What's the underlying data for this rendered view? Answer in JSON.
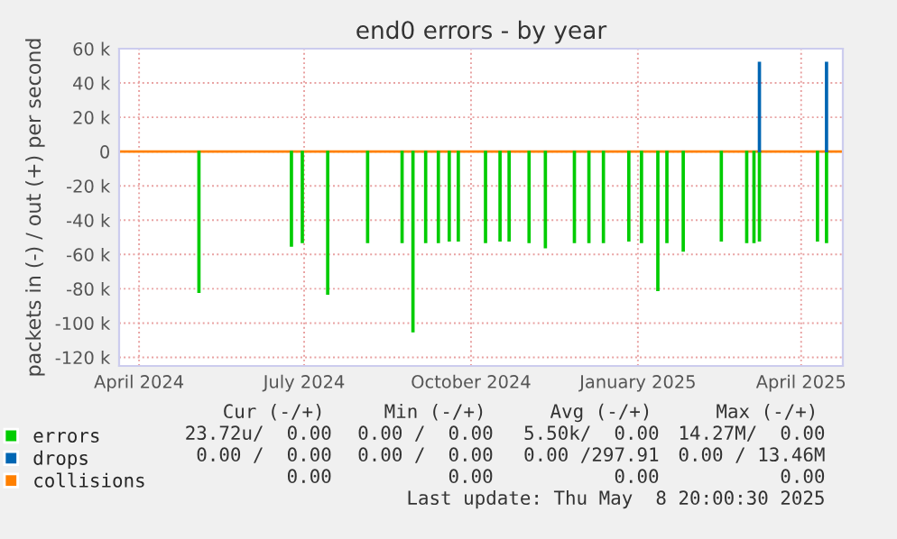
{
  "chart_data": {
    "type": "bar",
    "title": "end0 errors - by year",
    "ylabel": "packets in (-) / out (+) per second",
    "xlim": [
      "2024-03-21",
      "2025-04-24"
    ],
    "xticks": [
      {
        "value": "2024-04-01",
        "label": "April 2024"
      },
      {
        "value": "2024-07-01",
        "label": "July 2024"
      },
      {
        "value": "2024-10-01",
        "label": "October 2024"
      },
      {
        "value": "2025-01-01",
        "label": "January 2025"
      },
      {
        "value": "2025-04-01",
        "label": "April 2025"
      }
    ],
    "ylim": [
      -125000,
      60000
    ],
    "yticks": [
      {
        "value": -120000,
        "label": "-120 k"
      },
      {
        "value": -100000,
        "label": "-100 k"
      },
      {
        "value": -80000,
        "label": "-80 k"
      },
      {
        "value": -60000,
        "label": "-60 k"
      },
      {
        "value": -40000,
        "label": "-40 k"
      },
      {
        "value": -20000,
        "label": "-20 k"
      },
      0,
      {
        "value": 20000,
        "label": "20 k"
      },
      {
        "value": 40000,
        "label": "40 k"
      },
      {
        "value": 60000,
        "label": "60 k"
      }
    ],
    "grid": true,
    "legend": "bottom",
    "series": [
      {
        "name": "errors",
        "color": "#00cc00",
        "x": [
          "2024-05-04",
          "2024-06-24",
          "2024-06-30",
          "2024-07-14",
          "2024-08-05",
          "2024-08-24",
          "2024-08-30",
          "2024-09-06",
          "2024-09-13",
          "2024-09-19",
          "2024-09-24",
          "2024-10-09",
          "2024-10-17",
          "2024-10-22",
          "2024-11-02",
          "2024-11-11",
          "2024-11-27",
          "2024-12-05",
          "2024-12-13",
          "2024-12-27",
          "2025-01-03",
          "2025-01-12",
          "2025-01-17",
          "2025-01-26",
          "2025-02-16",
          "2025-03-02",
          "2025-03-06",
          "2025-03-09",
          "2025-04-10",
          "2025-04-15"
        ],
        "values": [
          -82000,
          -55000,
          -53000,
          -83000,
          -53000,
          -53000,
          -105000,
          -53000,
          -53000,
          -52000,
          -52000,
          -53000,
          -52000,
          -52000,
          -53000,
          -56000,
          -53000,
          -53000,
          -53000,
          -52000,
          -53000,
          -81000,
          -53000,
          -58000,
          -52000,
          -53000,
          -53000,
          -52000,
          -52000,
          -53000
        ]
      },
      {
        "name": "drops",
        "color": "#0066b3",
        "x": [
          "2025-03-09",
          "2025-04-15"
        ],
        "values": [
          52000,
          52000
        ]
      },
      {
        "name": "collisions",
        "color": "#ff8000",
        "type": "line",
        "x": [
          "2024-03-21",
          "2025-04-24"
        ],
        "values": [
          0,
          0
        ]
      }
    ],
    "annotations": [
      "Cur (-/+)",
      "Min (-/+)",
      "Avg (-/+)",
      "Max (-/+)",
      "23.72u/  0.00",
      "0.00 /  0.00",
      "5.50k/  0.00",
      "14.27M/  0.00",
      "0.00 /  0.00",
      "0.00 /  0.00",
      "0.00 /297.91",
      "0.00 / 13.46M",
      "0.00",
      "0.00",
      "0.00",
      "0.00",
      "Last update: Thu May  8 20:00:30 2025"
    ]
  }
}
